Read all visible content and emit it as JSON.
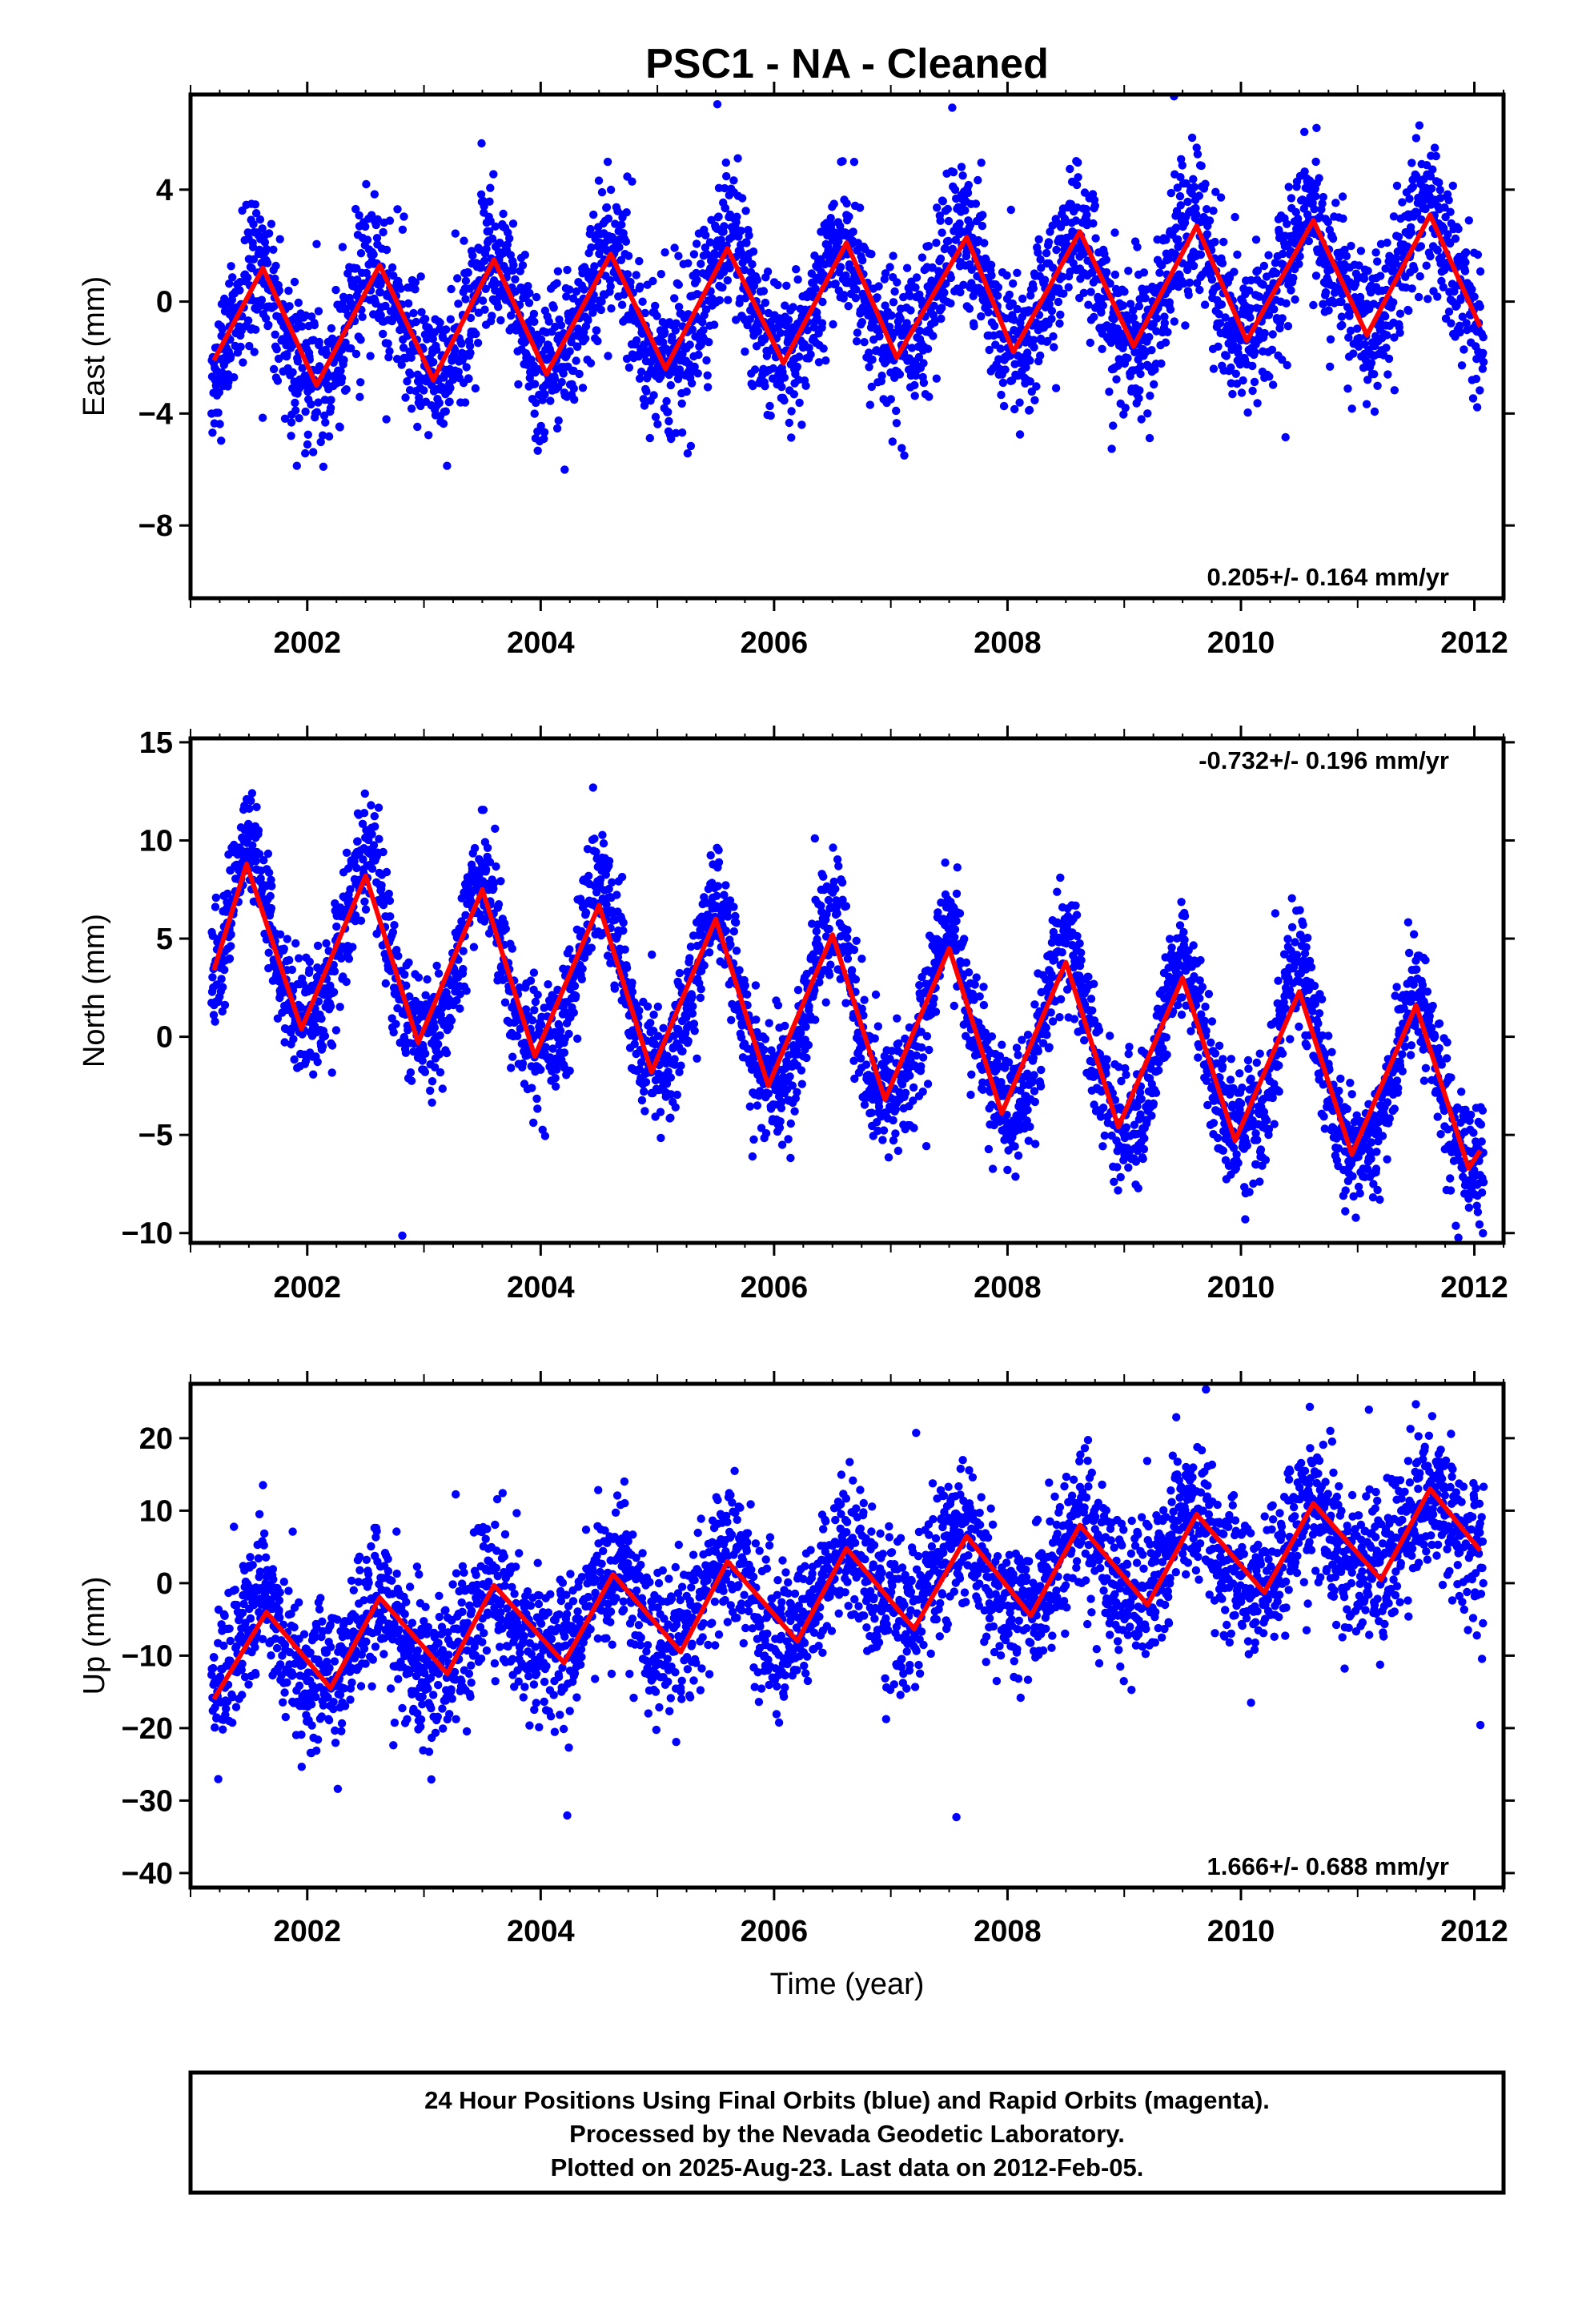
{
  "title": "PSC1  - NA - Cleaned",
  "colors": {
    "points": "#0000ff",
    "fit": "#ff0000",
    "frame": "#000000"
  },
  "chart_data": [
    {
      "type": "scatter",
      "key": "east",
      "ylabel": "East (mm)",
      "xlim": [
        2001.0,
        2012.25
      ],
      "ylim": [
        -10.6,
        7.4
      ],
      "yticks": [
        4,
        0,
        -4,
        -8
      ],
      "ytick_labels": [
        "4",
        "0",
        "−4",
        "−8"
      ],
      "xticks": [
        2002,
        2004,
        2006,
        2008,
        2010,
        2012
      ],
      "xtick_labels": [
        "2002",
        "2004",
        "2006",
        "2008",
        "2010",
        "2012"
      ],
      "rate_text": "0.205+/- 0.164 mm/yr",
      "rate_position": "bottom-right",
      "trend": {
        "t0": 2006.67,
        "v0": 0.0,
        "slope": 0.205
      },
      "seasonal": {
        "amplitude": 2.0,
        "peak_phase": 0.58,
        "semiannual_amplitude": 0.3
      },
      "scatter_sigma": 1.3,
      "series": [
        {
          "name": "",
          "type": "line",
          "x": [
            2001.2,
            2001.62,
            2002.08,
            2002.62,
            2003.08,
            2003.6,
            2004.05,
            2004.6,
            2005.07,
            2005.6,
            2006.08,
            2006.62,
            2007.05,
            2007.65,
            2008.05,
            2008.62,
            2009.08,
            2009.62,
            2010.05,
            2010.62,
            2011.08,
            2011.62,
            2012.05
          ],
          "y": [
            -2.1,
            1.2,
            -3.0,
            1.3,
            -2.8,
            1.5,
            -2.6,
            1.7,
            -2.4,
            1.9,
            -2.2,
            2.1,
            -2.0,
            2.3,
            -1.8,
            2.5,
            -1.6,
            2.7,
            -1.4,
            2.9,
            -1.2,
            3.1,
            -0.9
          ]
        }
      ]
    },
    {
      "type": "scatter",
      "key": "north",
      "ylabel": "North (mm)",
      "xlim": [
        2001.0,
        2012.25
      ],
      "ylim": [
        -10.5,
        15.2
      ],
      "yticks": [
        15,
        10,
        5,
        0,
        -5,
        -10
      ],
      "ytick_labels": [
        "15",
        "10",
        "5",
        "0",
        "−5",
        "−10"
      ],
      "xticks": [
        2002,
        2004,
        2006,
        2008,
        2010,
        2012
      ],
      "xtick_labels": [
        "2002",
        "2004",
        "2006",
        "2008",
        "2010",
        "2012"
      ],
      "rate_text": "-0.732+/- 0.196 mm/yr",
      "rate_position": "top-right",
      "trend": {
        "t0": 2006.67,
        "v0": 1.0,
        "slope": -0.732
      },
      "seasonal": {
        "amplitude": 4.3,
        "peak_phase": 0.5,
        "semiannual_amplitude": 0.8
      },
      "scatter_sigma": 1.5,
      "series": [
        {
          "name": "",
          "type": "line",
          "x": [
            2001.2,
            2001.48,
            2001.95,
            2002.5,
            2002.95,
            2003.5,
            2003.95,
            2004.5,
            2004.95,
            2005.5,
            2005.95,
            2006.5,
            2006.95,
            2007.5,
            2007.95,
            2008.5,
            2008.95,
            2009.5,
            2009.95,
            2010.5,
            2010.95,
            2011.5,
            2011.95,
            2012.05
          ],
          "y": [
            3.4,
            8.8,
            0.4,
            8.2,
            -0.3,
            7.5,
            -1.0,
            6.7,
            -1.8,
            6.0,
            -2.5,
            5.2,
            -3.2,
            4.5,
            -3.9,
            3.8,
            -4.6,
            3.0,
            -5.3,
            2.3,
            -6.0,
            1.6,
            -6.7,
            -5.8
          ]
        }
      ]
    },
    {
      "type": "scatter",
      "key": "up",
      "ylabel": "Up (mm)",
      "xlabel": "Time (year)",
      "xlim": [
        2001.0,
        2012.25
      ],
      "ylim": [
        -42.0,
        27.5
      ],
      "yticks": [
        20,
        10,
        0,
        -10,
        -20,
        -30,
        -40
      ],
      "ytick_labels": [
        "20",
        "10",
        "0",
        "−10",
        "−20",
        "−30",
        "−40"
      ],
      "xticks": [
        2002,
        2004,
        2006,
        2008,
        2010,
        2012
      ],
      "xtick_labels": [
        "2002",
        "2004",
        "2006",
        "2008",
        "2010",
        "2012"
      ],
      "rate_text": "1.666+/- 0.688 mm/yr",
      "rate_position": "bottom-right",
      "trend": {
        "t0": 2006.67,
        "v0": -1.0,
        "slope": 1.666
      },
      "seasonal": {
        "amplitude": 5.5,
        "peak_phase": 0.6,
        "semiannual_amplitude": 1.0
      },
      "scatter_sigma": 5.0,
      "series": [
        {
          "name": "",
          "type": "line",
          "x": [
            2001.2,
            2001.65,
            2002.2,
            2002.62,
            2003.2,
            2003.6,
            2004.2,
            2004.62,
            2005.2,
            2005.6,
            2006.2,
            2006.62,
            2007.2,
            2007.65,
            2008.2,
            2008.62,
            2009.2,
            2009.62,
            2010.2,
            2010.62,
            2011.2,
            2011.62,
            2012.05
          ],
          "y": [
            -16.0,
            -4.0,
            -14.5,
            -2.0,
            -12.5,
            -0.3,
            -11.0,
            1.2,
            -9.5,
            3.0,
            -8.0,
            4.8,
            -6.3,
            6.5,
            -4.5,
            8.0,
            -3.0,
            9.5,
            -1.3,
            11.0,
            0.5,
            13.0,
            4.5
          ]
        }
      ]
    }
  ],
  "footer": {
    "lines": [
      "24 Hour Positions Using Final Orbits (blue) and Rapid Orbits (magenta).",
      "Processed by the Nevada Geodetic Laboratory.",
      "Plotted on 2025-Aug-23. Last data on 2012-Feb-05."
    ]
  }
}
